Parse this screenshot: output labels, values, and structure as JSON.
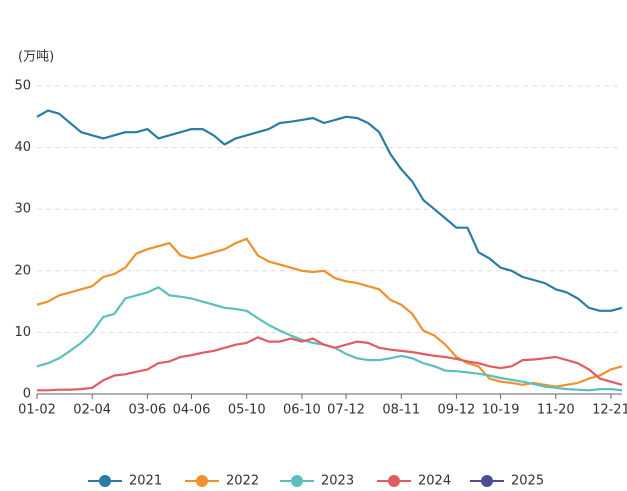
{
  "chart_data": {
    "type": "line",
    "y_label": "(万吨)",
    "categories": [
      "01-02",
      null,
      null,
      null,
      null,
      "02-04",
      null,
      null,
      null,
      null,
      "03-06",
      null,
      null,
      null,
      "04-06",
      null,
      null,
      null,
      null,
      "05-10",
      null,
      null,
      null,
      null,
      "06-10",
      null,
      null,
      null,
      "07-12",
      null,
      null,
      null,
      null,
      "08-11",
      null,
      null,
      null,
      null,
      "09-12",
      null,
      null,
      null,
      "10-19",
      null,
      null,
      null,
      null,
      "11-20",
      null,
      null,
      null,
      null,
      "12-21",
      null
    ],
    "ylim": [
      0,
      50
    ],
    "yticks": [
      0,
      10,
      20,
      30,
      40,
      50
    ],
    "grid": true,
    "series": [
      {
        "name": "2021",
        "color": "#2b7ca4",
        "values": [
          45,
          46,
          45.5,
          44,
          42.5,
          42,
          41.5,
          42,
          42.5,
          42.5,
          43,
          41.5,
          42,
          42.5,
          43,
          43,
          42,
          40.5,
          41.5,
          42,
          42.5,
          43,
          44,
          44.2,
          44.5,
          44.8,
          44,
          44.5,
          45,
          44.8,
          44,
          42.5,
          39,
          36.5,
          34.5,
          31.5,
          30,
          28.5,
          27,
          27,
          23,
          22,
          20.5,
          20,
          19,
          18.5,
          18,
          17,
          16.5,
          15.5,
          14,
          13.5,
          13.5,
          14
        ]
      },
      {
        "name": "2022",
        "color": "#f0912d",
        "values": [
          14.5,
          15,
          16,
          16.5,
          17,
          17.5,
          19,
          19.5,
          20.5,
          22.8,
          23.5,
          24,
          24.5,
          22.5,
          22,
          22.5,
          23,
          23.5,
          24.5,
          25.2,
          22.5,
          21.5,
          21,
          20.5,
          20,
          19.8,
          20,
          18.8,
          18.3,
          18,
          17.5,
          17,
          15.3,
          14.5,
          13,
          10.3,
          9.5,
          8,
          6,
          5,
          4.5,
          2.5,
          2,
          1.8,
          1.5,
          1.8,
          1.5,
          1.2,
          1.5,
          1.8,
          2.5,
          3,
          4,
          4.5
        ]
      },
      {
        "name": "2023",
        "color": "#5bbfbd",
        "values": [
          4.5,
          5,
          5.8,
          7,
          8.3,
          10,
          12.5,
          13,
          15.5,
          16,
          16.5,
          17.3,
          16,
          15.8,
          15.5,
          15,
          14.5,
          14,
          13.8,
          13.5,
          12.3,
          11.2,
          10.3,
          9.5,
          8.8,
          8.3,
          8,
          7.5,
          6.5,
          5.8,
          5.5,
          5.5,
          5.8,
          6.2,
          5.8,
          5,
          4.5,
          3.8,
          3.7,
          3.5,
          3.3,
          3,
          2.6,
          2.3,
          2,
          1.6,
          1.2,
          1,
          0.8,
          0.7,
          0.6,
          0.8,
          0.8,
          0.6
        ]
      },
      {
        "name": "2024",
        "color": "#e05b62",
        "values": [
          0.6,
          0.6,
          0.7,
          0.7,
          0.8,
          1,
          2.2,
          3,
          3.2,
          3.6,
          4,
          5,
          5.3,
          6,
          6.3,
          6.7,
          7,
          7.5,
          8,
          8.3,
          9.2,
          8.5,
          8.5,
          9,
          8.5,
          9,
          8,
          7.5,
          8,
          8.5,
          8.3,
          7.5,
          7.2,
          7,
          6.8,
          6.5,
          6.2,
          6,
          5.7,
          5.3,
          5,
          4.5,
          4.2,
          4.5,
          5.5,
          5.6,
          5.8,
          6,
          5.5,
          5,
          4,
          2.5,
          2,
          1.5
        ]
      },
      {
        "name": "2025",
        "color": "#4a4f8f",
        "values": [
          null,
          null,
          null,
          null,
          null,
          null,
          null,
          null,
          null,
          null,
          null,
          null,
          null,
          null,
          null,
          null,
          null,
          null,
          null,
          null,
          null,
          null,
          null,
          null,
          null,
          null,
          null,
          null,
          null,
          null,
          null,
          null,
          null,
          null,
          null,
          null,
          null,
          null,
          null,
          null,
          null,
          null,
          null,
          null,
          null,
          null,
          null,
          null,
          null,
          null,
          null,
          null,
          null,
          null
        ]
      }
    ]
  }
}
